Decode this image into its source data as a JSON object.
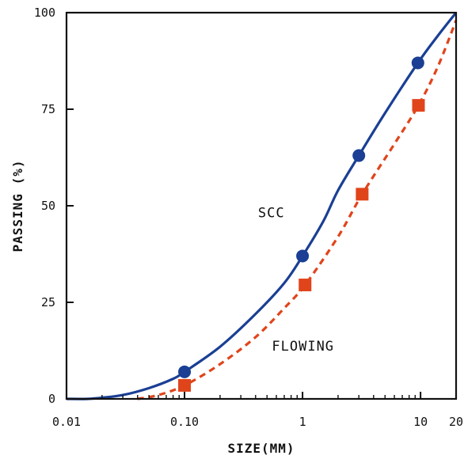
{
  "chart_data": {
    "type": "line",
    "xlabel": "SIZE(MM)",
    "ylabel": "PASSING (%)",
    "xscale": "log",
    "xlim": [
      0.01,
      20
    ],
    "ylim": [
      0,
      100
    ],
    "xticks": [
      {
        "value": 0.01,
        "label": "0.01"
      },
      {
        "value": 0.1,
        "label": "0.10"
      },
      {
        "value": 1,
        "label": "1"
      },
      {
        "value": 10,
        "label": "10"
      },
      {
        "value": 20,
        "label": "20"
      }
    ],
    "yticks": [
      {
        "value": 0,
        "label": "0"
      },
      {
        "value": 25,
        "label": "25"
      },
      {
        "value": 50,
        "label": "50"
      },
      {
        "value": 75,
        "label": "75"
      },
      {
        "value": 100,
        "label": "100"
      }
    ],
    "grid": false,
    "legend": "none",
    "series": [
      {
        "name": "SCC",
        "color": "#1a3f94",
        "line_style": "solid",
        "marker": "circle",
        "points": [
          {
            "x": 0.1,
            "y": 7
          },
          {
            "x": 1,
            "y": 37
          },
          {
            "x": 3,
            "y": 63
          },
          {
            "x": 9.5,
            "y": 87
          }
        ],
        "curve": [
          {
            "x": 0.01,
            "y": 0
          },
          {
            "x": 0.015,
            "y": 0
          },
          {
            "x": 0.02,
            "y": 0.3
          },
          {
            "x": 0.03,
            "y": 1
          },
          {
            "x": 0.05,
            "y": 2.8
          },
          {
            "x": 0.08,
            "y": 5.2
          },
          {
            "x": 0.1,
            "y": 7
          },
          {
            "x": 0.2,
            "y": 13.5
          },
          {
            "x": 0.4,
            "y": 22
          },
          {
            "x": 0.7,
            "y": 30
          },
          {
            "x": 1,
            "y": 37
          },
          {
            "x": 1.5,
            "y": 46
          },
          {
            "x": 2,
            "y": 54
          },
          {
            "x": 3,
            "y": 63
          },
          {
            "x": 5,
            "y": 74
          },
          {
            "x": 9.5,
            "y": 87
          },
          {
            "x": 14,
            "y": 94
          },
          {
            "x": 20,
            "y": 100
          }
        ]
      },
      {
        "name": "FLOWING",
        "color": "#e0441b",
        "line_style": "dashed",
        "marker": "square",
        "points": [
          {
            "x": 0.1,
            "y": 3.5
          },
          {
            "x": 1.05,
            "y": 29.5
          },
          {
            "x": 3.2,
            "y": 53
          },
          {
            "x": 9.6,
            "y": 76
          }
        ],
        "curve": [
          {
            "x": 0.04,
            "y": 0
          },
          {
            "x": 0.06,
            "y": 1
          },
          {
            "x": 0.1,
            "y": 3.5
          },
          {
            "x": 0.2,
            "y": 9
          },
          {
            "x": 0.4,
            "y": 16
          },
          {
            "x": 0.7,
            "y": 23.5
          },
          {
            "x": 1.05,
            "y": 29.5
          },
          {
            "x": 2,
            "y": 42
          },
          {
            "x": 3.2,
            "y": 53
          },
          {
            "x": 6,
            "y": 66
          },
          {
            "x": 9.6,
            "y": 76
          },
          {
            "x": 14,
            "y": 86
          },
          {
            "x": 20,
            "y": 98
          }
        ]
      }
    ],
    "annotations": [
      {
        "text": "SCC",
        "x": 0.42,
        "y": 47
      },
      {
        "text": "FLOWING",
        "x": 0.55,
        "y": 12.5
      }
    ]
  }
}
